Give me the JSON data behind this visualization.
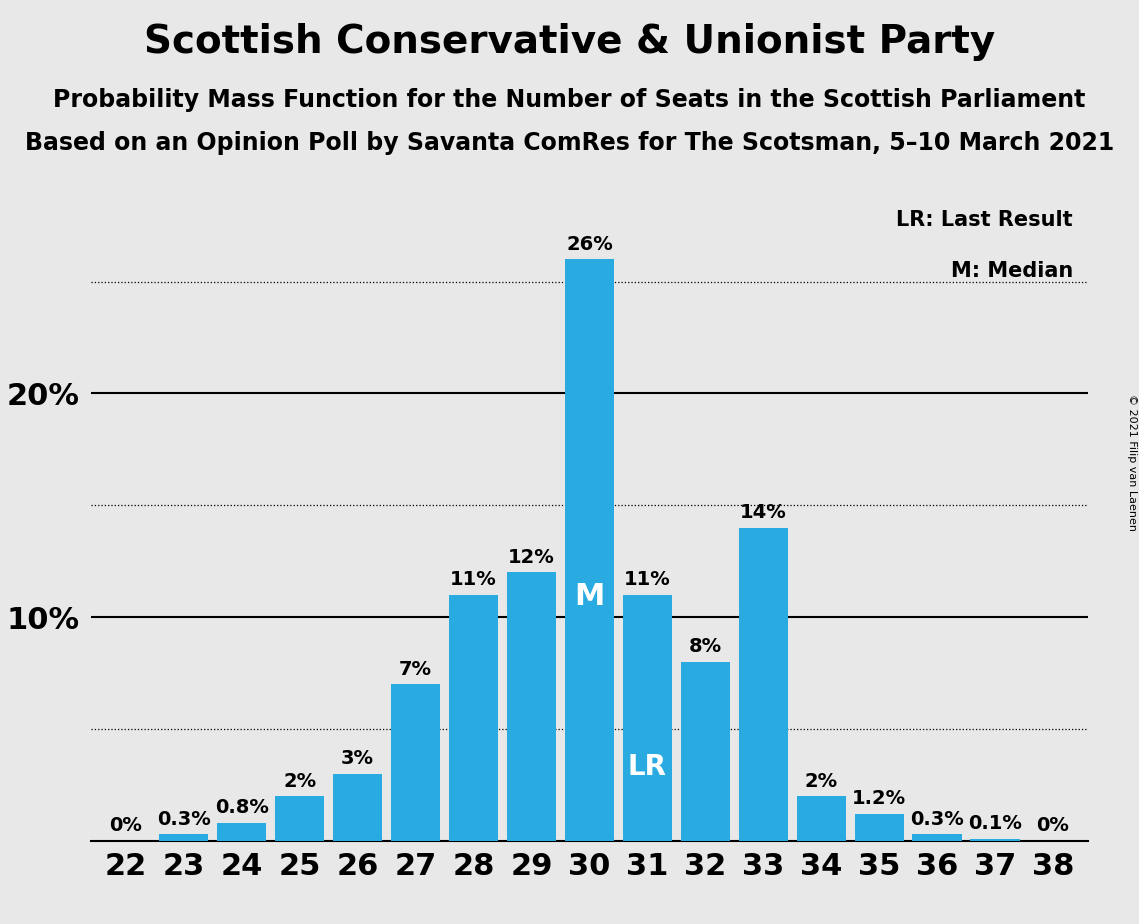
{
  "title": "Scottish Conservative & Unionist Party",
  "subtitle1": "Probability Mass Function for the Number of Seats in the Scottish Parliament",
  "subtitle2": "Based on an Opinion Poll by Savanta ComRes for The Scotsman, 5–10 March 2021",
  "copyright": "© 2021 Filip van Laenen",
  "seats": [
    22,
    23,
    24,
    25,
    26,
    27,
    28,
    29,
    30,
    31,
    32,
    33,
    34,
    35,
    36,
    37,
    38
  ],
  "probabilities": [
    0.0,
    0.3,
    0.8,
    2.0,
    3.0,
    7.0,
    11.0,
    12.0,
    26.0,
    11.0,
    8.0,
    14.0,
    2.0,
    1.2,
    0.3,
    0.1,
    0.0
  ],
  "labels": [
    "0%",
    "0.3%",
    "0.8%",
    "2%",
    "3%",
    "7%",
    "11%",
    "12%",
    "26%",
    "11%",
    "8%",
    "14%",
    "2%",
    "1.2%",
    "0.3%",
    "0.1%",
    "0%"
  ],
  "bar_color": "#29ABE2",
  "background_color": "#E8E8E8",
  "median_seat": 30,
  "lr_seat": 31,
  "legend_lr": "LR: Last Result",
  "legend_m": "M: Median",
  "dotted_lines": [
    5.0,
    15.0,
    25.0
  ],
  "solid_lines": [
    10.0,
    20.0
  ],
  "ylim": [
    0,
    28.5
  ],
  "title_fontsize": 28,
  "subtitle_fontsize": 17,
  "axis_fontsize": 22,
  "bar_label_fontsize": 14,
  "legend_fontsize": 15,
  "m_fontsize": 22,
  "lr_fontsize": 20,
  "copyright_fontsize": 8
}
